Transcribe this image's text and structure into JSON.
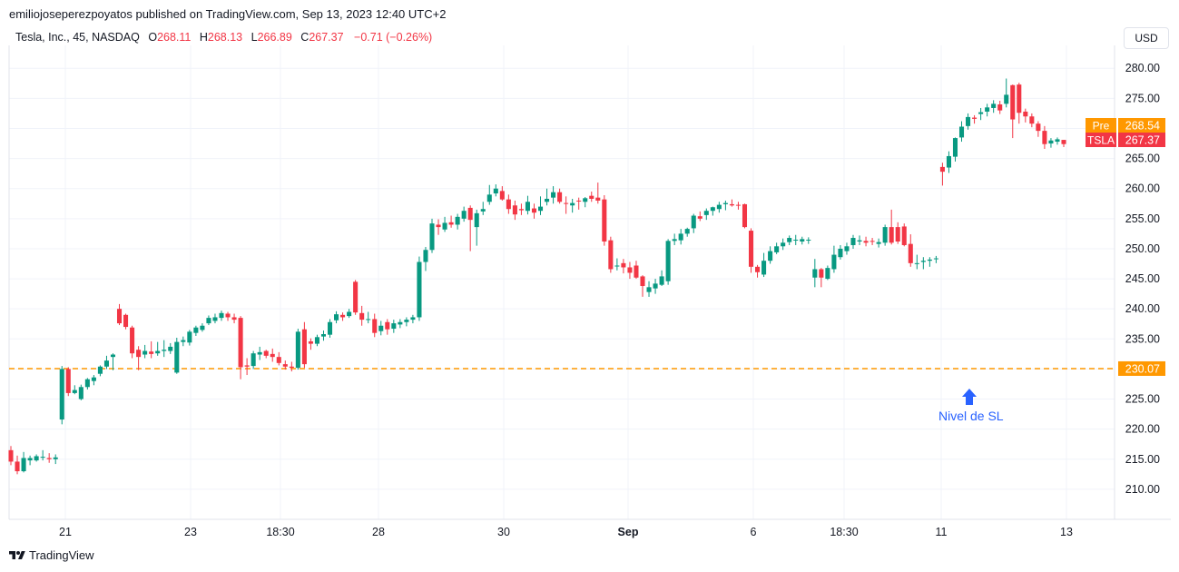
{
  "header": {
    "published_text": "emiliojoseperezpoyatos published on TradingView.com, Sep 13, 2023 12:40 UTC+2",
    "symbol_text": "Tesla, Inc., 45, NASDAQ",
    "o_label": "O",
    "o_value": "268.11",
    "h_label": "H",
    "h_value": "268.13",
    "l_label": "L",
    "l_value": "266.89",
    "c_label": "C",
    "c_value": "267.37",
    "change_text": "−0.71 (−0.26%)",
    "currency_button": "USD"
  },
  "footer": {
    "brand": "TradingView"
  },
  "annotation": {
    "text": "Nivel de SL",
    "color": "#2962ff"
  },
  "colors": {
    "up": "#089981",
    "down": "#f23645",
    "sl_line": "#ff9800",
    "pre_tag": "#ff9800",
    "last_tag": "#f23645",
    "grid": "#f0f3fa"
  },
  "chart_data": {
    "type": "candlestick",
    "symbol": "TSLA",
    "exchange": "NASDAQ",
    "interval": "45",
    "ylim": [
      205,
      282
    ],
    "y_ticks": [
      "280.00",
      "275.00",
      "270.00",
      "265.00",
      "260.00",
      "255.00",
      "250.00",
      "245.00",
      "240.00",
      "235.00",
      "230.00",
      "225.00",
      "220.00",
      "215.00",
      "210.00"
    ],
    "x_ticks": [
      "21",
      "23",
      "18:30",
      "28",
      "30",
      "Sep",
      "6",
      "18:30",
      "11",
      "13"
    ],
    "x_tick_bold": "Sep",
    "grid": true,
    "price_tags": [
      {
        "label": "Pre",
        "value": "268.54"
      },
      {
        "label": "TSLA",
        "value": "267.37"
      },
      {
        "label": "",
        "value": "230.07"
      }
    ],
    "horizontal_line": {
      "value": 230.07,
      "style": "dashed",
      "label": "Nivel de SL"
    },
    "candles": [
      [
        216.5,
        217.2,
        214.0,
        214.6
      ],
      [
        214.6,
        215.6,
        212.5,
        213.0
      ],
      [
        213.0,
        216.2,
        212.8,
        215.2
      ],
      [
        214.8,
        215.6,
        214.0,
        215.2
      ],
      [
        214.8,
        215.8,
        214.6,
        215.5
      ],
      [
        215.4,
        216.5,
        214.8,
        215.4
      ],
      [
        215.2,
        216.0,
        214.4,
        215.0
      ],
      [
        215.0,
        215.8,
        214.2,
        215.3
      ],
      [
        221.6,
        230.5,
        220.8,
        230.0
      ],
      [
        230.0,
        230.3,
        225.5,
        226.0
      ],
      [
        226.0,
        227.3,
        225.8,
        226.5
      ],
      [
        225.0,
        227.4,
        224.8,
        227.0
      ],
      [
        227.0,
        228.5,
        226.6,
        228.3
      ],
      [
        228.0,
        229.0,
        227.3,
        228.6
      ],
      [
        229.2,
        230.6,
        228.8,
        230.4
      ],
      [
        230.4,
        232.2,
        230.0,
        231.4
      ],
      [
        232.0,
        232.6,
        229.8,
        232.4
      ],
      [
        240.0,
        240.8,
        237.3,
        237.6
      ],
      [
        239.0,
        239.2,
        236.6,
        237.0
      ],
      [
        236.9,
        237.2,
        231.8,
        232.6
      ],
      [
        233.2,
        233.8,
        229.8,
        232.0
      ],
      [
        232.4,
        234.0,
        231.8,
        233.0
      ],
      [
        232.9,
        234.6,
        231.8,
        232.5
      ],
      [
        232.6,
        234.5,
        232.2,
        233.0
      ],
      [
        233.0,
        234.8,
        232.0,
        233.2
      ],
      [
        233.0,
        234.3,
        232.5,
        233.7
      ],
      [
        229.4,
        235.2,
        229.2,
        234.5
      ],
      [
        234.5,
        235.4,
        233.8,
        234.8
      ],
      [
        234.4,
        236.5,
        233.9,
        236.2
      ],
      [
        236.0,
        237.2,
        235.5,
        236.9
      ],
      [
        236.5,
        237.6,
        236.2,
        237.2
      ],
      [
        237.6,
        238.9,
        237.3,
        238.5
      ],
      [
        238.0,
        239.2,
        237.6,
        238.6
      ],
      [
        238.5,
        239.7,
        238.0,
        239.3
      ],
      [
        239.2,
        239.5,
        238.0,
        238.6
      ],
      [
        238.6,
        239.2,
        237.6,
        238.2
      ],
      [
        238.5,
        238.8,
        228.3,
        230.3
      ],
      [
        230.6,
        231.8,
        229.0,
        230.4
      ],
      [
        230.5,
        233.0,
        230.0,
        232.6
      ],
      [
        232.4,
        233.7,
        231.5,
        232.8
      ],
      [
        233.0,
        233.2,
        231.8,
        232.2
      ],
      [
        232.5,
        233.4,
        231.2,
        232.0
      ],
      [
        232.0,
        232.8,
        230.6,
        231.0
      ],
      [
        230.8,
        231.4,
        229.9,
        230.4
      ],
      [
        230.4,
        231.2,
        229.6,
        230.2
      ],
      [
        230.2,
        236.7,
        229.9,
        236.2
      ],
      [
        236.6,
        237.8,
        230.2,
        230.8
      ],
      [
        234.6,
        235.1,
        233.2,
        234.2
      ],
      [
        234.2,
        235.7,
        233.8,
        235.3
      ],
      [
        235.4,
        236.4,
        234.7,
        235.8
      ],
      [
        235.7,
        238.3,
        235.2,
        237.8
      ],
      [
        238.1,
        239.6,
        237.6,
        239.1
      ],
      [
        239.0,
        239.4,
        238.0,
        238.6
      ],
      [
        238.8,
        240.0,
        238.5,
        239.5
      ],
      [
        244.5,
        244.8,
        239.0,
        239.4
      ],
      [
        239.3,
        240.5,
        237.2,
        238.2
      ],
      [
        238.2,
        239.5,
        237.6,
        238.3
      ],
      [
        238.3,
        239.2,
        235.3,
        236.0
      ],
      [
        236.3,
        238.0,
        235.6,
        237.2
      ],
      [
        237.8,
        238.3,
        235.7,
        236.6
      ],
      [
        236.7,
        238.2,
        236.0,
        237.6
      ],
      [
        237.4,
        238.3,
        236.8,
        237.8
      ],
      [
        237.8,
        238.6,
        237.1,
        238.2
      ],
      [
        238.2,
        239.0,
        237.6,
        238.6
      ],
      [
        238.6,
        248.7,
        238.0,
        247.8
      ],
      [
        247.8,
        250.3,
        246.3,
        249.8
      ],
      [
        249.8,
        255.0,
        249.3,
        254.2
      ],
      [
        254.0,
        254.9,
        252.3,
        253.6
      ],
      [
        253.2,
        255.3,
        252.8,
        254.3
      ],
      [
        254.4,
        255.5,
        253.5,
        254.0
      ],
      [
        254.0,
        255.8,
        253.2,
        255.3
      ],
      [
        255.0,
        257.0,
        254.5,
        256.3
      ],
      [
        256.8,
        257.2,
        249.6,
        254.8
      ],
      [
        253.6,
        256.5,
        250.5,
        255.9
      ],
      [
        256.2,
        257.8,
        255.6,
        256.6
      ],
      [
        257.8,
        260.6,
        257.3,
        259.0
      ],
      [
        259.2,
        260.7,
        258.7,
        260.0
      ],
      [
        259.6,
        260.4,
        258.0,
        258.2
      ],
      [
        258.2,
        259.0,
        255.8,
        256.6
      ],
      [
        257.2,
        258.0,
        254.8,
        255.7
      ],
      [
        256.6,
        257.5,
        255.6,
        256.4
      ],
      [
        256.3,
        258.8,
        255.7,
        257.8
      ],
      [
        256.7,
        257.5,
        255.0,
        256.0
      ],
      [
        256.3,
        258.7,
        255.6,
        257.0
      ],
      [
        257.8,
        260.0,
        257.2,
        258.3
      ],
      [
        258.5,
        260.4,
        257.5,
        259.4
      ],
      [
        259.4,
        260.0,
        257.5,
        257.8
      ],
      [
        257.6,
        258.7,
        255.8,
        257.5
      ],
      [
        257.2,
        258.3,
        256.0,
        257.6
      ],
      [
        258.0,
        258.5,
        256.5,
        257.9
      ],
      [
        257.8,
        258.6,
        256.9,
        258.4
      ],
      [
        258.8,
        259.5,
        257.8,
        258.3
      ],
      [
        258.5,
        261.0,
        257.5,
        258.0
      ],
      [
        258.2,
        258.9,
        250.5,
        251.2
      ],
      [
        251.4,
        252.0,
        246.0,
        246.6
      ],
      [
        247.2,
        248.4,
        246.4,
        247.2
      ],
      [
        247.6,
        248.3,
        245.9,
        246.9
      ],
      [
        246.9,
        247.8,
        245.0,
        246.0
      ],
      [
        247.2,
        248.0,
        245.0,
        245.2
      ],
      [
        245.4,
        245.6,
        242.0,
        243.8
      ],
      [
        242.8,
        244.6,
        242.0,
        243.6
      ],
      [
        243.4,
        245.0,
        242.5,
        244.2
      ],
      [
        244.0,
        246.4,
        243.8,
        245.4
      ],
      [
        244.6,
        251.6,
        244.0,
        251.3
      ],
      [
        251.3,
        252.5,
        250.6,
        251.6
      ],
      [
        251.4,
        253.3,
        250.7,
        252.5
      ],
      [
        252.5,
        253.5,
        252.0,
        253.3
      ],
      [
        253.4,
        255.8,
        252.6,
        255.5
      ],
      [
        255.4,
        256.2,
        254.6,
        255.0
      ],
      [
        255.6,
        256.7,
        254.8,
        256.3
      ],
      [
        256.3,
        257.0,
        255.5,
        256.9
      ],
      [
        256.6,
        257.8,
        256.0,
        257.3
      ],
      [
        257.4,
        258.0,
        256.4,
        257.6
      ],
      [
        257.4,
        258.2,
        257.0,
        257.2
      ],
      [
        257.3,
        257.8,
        256.5,
        257.2
      ],
      [
        257.4,
        257.5,
        253.4,
        253.6
      ],
      [
        253.0,
        253.4,
        246.0,
        247.0
      ],
      [
        247.0,
        247.3,
        245.2,
        246.1
      ],
      [
        245.7,
        249.3,
        245.3,
        248.0
      ],
      [
        248.0,
        250.4,
        247.5,
        249.6
      ],
      [
        249.4,
        251.0,
        249.1,
        250.4
      ],
      [
        250.4,
        251.7,
        249.8,
        251.0
      ],
      [
        251.1,
        252.2,
        250.6,
        251.8
      ],
      [
        251.5,
        252.3,
        250.6,
        251.5
      ],
      [
        251.2,
        252.0,
        250.7,
        251.6
      ],
      [
        251.4,
        251.9,
        250.8,
        251.5
      ],
      [
        245.2,
        248.3,
        243.6,
        246.6
      ],
      [
        246.6,
        246.8,
        243.6,
        245.2
      ],
      [
        245.0,
        247.2,
        244.8,
        246.8
      ],
      [
        246.6,
        250.5,
        246.0,
        249.0
      ],
      [
        248.6,
        250.6,
        248.2,
        250.0
      ],
      [
        249.6,
        251.0,
        249.0,
        250.4
      ],
      [
        250.6,
        252.3,
        250.0,
        251.8
      ],
      [
        251.2,
        252.2,
        250.6,
        251.4
      ],
      [
        251.3,
        252.0,
        250.4,
        251.0
      ],
      [
        251.3,
        251.8,
        250.6,
        251.2
      ],
      [
        250.8,
        251.7,
        250.2,
        251.1
      ],
      [
        251.0,
        254.0,
        250.5,
        253.6
      ],
      [
        253.6,
        256.5,
        250.7,
        251.0
      ],
      [
        253.6,
        254.4,
        250.8,
        251.2
      ],
      [
        253.7,
        254.2,
        250.4,
        250.6
      ],
      [
        250.8,
        252.4,
        247.0,
        247.6
      ],
      [
        247.6,
        249.0,
        246.6,
        247.6
      ],
      [
        247.8,
        248.6,
        246.6,
        248.0
      ],
      [
        248.0,
        248.6,
        247.0,
        248.2
      ],
      [
        248.3,
        248.8,
        247.6,
        248.4
      ],
      [
        263.6,
        264.3,
        260.5,
        262.8
      ],
      [
        263.5,
        266.2,
        262.6,
        265.4
      ],
      [
        265.3,
        268.5,
        264.5,
        268.4
      ],
      [
        268.5,
        271.2,
        267.8,
        270.3
      ],
      [
        270.4,
        272.5,
        269.8,
        271.9
      ],
      [
        271.8,
        272.2,
        270.8,
        271.6
      ],
      [
        272.4,
        273.4,
        271.4,
        272.7
      ],
      [
        272.8,
        274.1,
        272.0,
        273.5
      ],
      [
        273.4,
        274.7,
        272.6,
        274.1
      ],
      [
        274.0,
        274.6,
        272.4,
        273.0
      ],
      [
        274.1,
        278.3,
        273.5,
        275.6
      ],
      [
        277.2,
        277.3,
        268.4,
        271.5
      ],
      [
        277.3,
        277.6,
        270.8,
        272.6
      ],
      [
        272.8,
        273.3,
        271.0,
        272.0
      ],
      [
        272.0,
        272.5,
        270.2,
        270.8
      ],
      [
        270.8,
        271.2,
        268.6,
        269.6
      ],
      [
        269.6,
        270.4,
        266.6,
        267.4
      ],
      [
        267.5,
        268.4,
        266.8,
        268.0
      ],
      [
        267.8,
        268.5,
        267.3,
        268.2
      ],
      [
        268.1,
        268.1,
        266.9,
        267.4
      ]
    ]
  }
}
